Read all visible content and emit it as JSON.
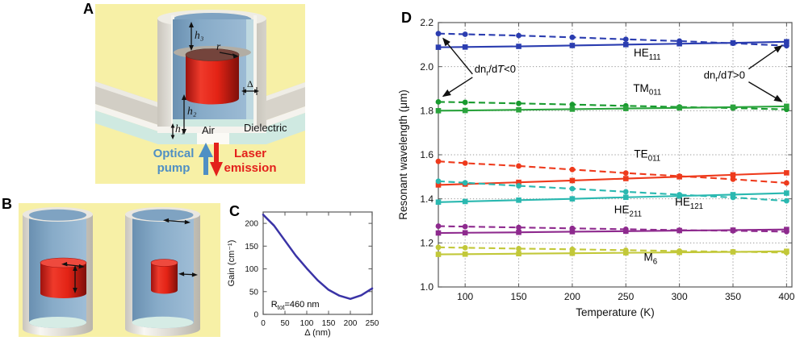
{
  "panel_a": {
    "letter": "A",
    "labels": {
      "h3": "h₃",
      "r": "r",
      "h2": "h₂",
      "delta": "Δ",
      "h1": "h₁",
      "air": "Air",
      "dielectric": "Dielectric",
      "optical_pump_line1": "Optical",
      "optical_pump_line2": "pump",
      "laser_line1": "Laser",
      "laser_line2": "emission"
    },
    "colors": {
      "background": "#f7f0a6",
      "metal": "#dcd9d1",
      "interior_blue": "#87abc8",
      "gain_red": "#e32315",
      "dielectric_cyan": "#cfe9e1",
      "pump_text": "#4f8fc4",
      "laser_text": "#e3211c"
    }
  },
  "panel_b": {
    "letter": "B"
  },
  "panel_c": {
    "letter": "C"
  },
  "panel_d": {
    "letter": "D"
  },
  "chart_data": [
    {
      "panel": "C",
      "type": "line",
      "title": "",
      "xlabel": "Δ (nm)",
      "ylabel": "Gain (cm⁻¹)",
      "xlim": [
        0,
        250
      ],
      "ylim": [
        0,
        225
      ],
      "xticks": [
        0,
        50,
        100,
        150,
        200,
        250
      ],
      "yticks": [
        0,
        50,
        100,
        150,
        200
      ],
      "grid": false,
      "legend": "none",
      "annotation": {
        "pre": "R",
        "sub": "tot",
        "mid": "=460 nm"
      },
      "line_color": "#3a33a6",
      "x": [
        0,
        25,
        50,
        75,
        100,
        125,
        150,
        175,
        200,
        225,
        250
      ],
      "y": [
        219,
        195,
        162,
        129,
        101,
        75,
        54,
        41,
        34,
        42,
        57
      ]
    },
    {
      "panel": "D",
      "type": "line",
      "title": "",
      "xlabel": "Temperature (K)",
      "ylabel": "Resonant wavelength (μm)",
      "xlim": [
        75,
        405
      ],
      "ylim": [
        1.0,
        2.2
      ],
      "xticks": [
        100,
        150,
        200,
        250,
        300,
        350,
        400
      ],
      "yticks": [
        1.0,
        1.2,
        1.4,
        1.6,
        1.8,
        2.0,
        2.2
      ],
      "grid": true,
      "legend": "none",
      "x": [
        75,
        100,
        150,
        200,
        250,
        300,
        350,
        400
      ],
      "series": [
        {
          "mode": "HE111",
          "variant": "dashed",
          "color": "#2b3db0",
          "style": "dashed",
          "marker": "circle",
          "values": [
            2.15,
            2.147,
            2.141,
            2.133,
            2.124,
            2.116,
            2.106,
            2.095
          ]
        },
        {
          "mode": "HE111",
          "variant": "solid",
          "color": "#2b3db0",
          "style": "solid",
          "marker": "square",
          "values": [
            2.088,
            2.089,
            2.092,
            2.096,
            2.1,
            2.104,
            2.108,
            2.113
          ]
        },
        {
          "mode": "TM011",
          "variant": "dashed",
          "color": "#189a2e",
          "style": "dashed",
          "marker": "circle",
          "values": [
            1.84,
            1.838,
            1.833,
            1.828,
            1.822,
            1.817,
            1.812,
            1.806
          ]
        },
        {
          "mode": "TM011",
          "variant": "solid",
          "color": "#2aa33c",
          "style": "solid",
          "marker": "square",
          "values": [
            1.8,
            1.801,
            1.804,
            1.807,
            1.81,
            1.813,
            1.816,
            1.82
          ]
        },
        {
          "mode": "TE011",
          "variant": "dashed",
          "color": "#ee3a1c",
          "style": "dashed",
          "marker": "circle",
          "values": [
            1.57,
            1.562,
            1.549,
            1.533,
            1.517,
            1.503,
            1.489,
            1.472
          ]
        },
        {
          "mode": "TE011",
          "variant": "solid",
          "color": "#ee3a1c",
          "style": "solid",
          "marker": "square",
          "values": [
            1.463,
            1.467,
            1.475,
            1.483,
            1.492,
            1.5,
            1.509,
            1.518
          ]
        },
        {
          "mode": "HE121",
          "variant": "dashed",
          "color": "#2ab8b0",
          "style": "dashed",
          "marker": "circle",
          "values": [
            1.48,
            1.473,
            1.459,
            1.446,
            1.432,
            1.419,
            1.406,
            1.391
          ]
        },
        {
          "mode": "HE121",
          "variant": "solid",
          "color": "#2ab8b0",
          "style": "solid",
          "marker": "square",
          "values": [
            1.385,
            1.388,
            1.394,
            1.4,
            1.407,
            1.413,
            1.419,
            1.426
          ]
        },
        {
          "mode": "HE211",
          "variant": "dashed",
          "color": "#8e2a8e",
          "style": "dashed",
          "marker": "circle",
          "values": [
            1.276,
            1.274,
            1.27,
            1.266,
            1.262,
            1.258,
            1.255,
            1.251
          ]
        },
        {
          "mode": "HE211",
          "variant": "solid",
          "color": "#8e2a8e",
          "style": "solid",
          "marker": "square",
          "values": [
            1.245,
            1.246,
            1.248,
            1.251,
            1.253,
            1.256,
            1.258,
            1.261
          ]
        },
        {
          "mode": "M6",
          "variant": "dashed",
          "color": "#c2c839",
          "style": "dashed",
          "marker": "circle",
          "values": [
            1.18,
            1.178,
            1.174,
            1.171,
            1.167,
            1.163,
            1.16,
            1.156
          ]
        },
        {
          "mode": "M6",
          "variant": "solid",
          "color": "#c2c839",
          "style": "solid",
          "marker": "square",
          "values": [
            1.148,
            1.149,
            1.151,
            1.153,
            1.155,
            1.157,
            1.159,
            1.162
          ]
        }
      ],
      "mode_labels": [
        {
          "pre": "HE",
          "sub": "111",
          "t": 270,
          "w": 2.046
        },
        {
          "pre": "TM",
          "sub": "011",
          "t": 270,
          "w": 1.886
        },
        {
          "pre": "TE",
          "sub": "011",
          "t": 270,
          "w": 1.587
        },
        {
          "pre": "HE",
          "sub": "211",
          "t": 252,
          "w": 1.334
        },
        {
          "pre": "HE",
          "sub": "121",
          "t": 309,
          "w": 1.369
        },
        {
          "pre": "M",
          "sub": "6",
          "t": 273,
          "w": 1.118
        }
      ],
      "annotations": [
        {
          "side": "left",
          "text": {
            "pre": "dn",
            "sub": "r",
            "mid": "/d",
            "it": "T",
            "post": "<0"
          },
          "t": 128,
          "w": 1.988,
          "arrows": [
            {
              "t": 75,
              "w": 2.15
            },
            {
              "t": 75,
              "w": 1.84
            }
          ]
        },
        {
          "side": "right",
          "text": {
            "pre": "dn",
            "sub": "r",
            "mid": "/d",
            "it": "T",
            "post": ">0"
          },
          "t": 342,
          "w": 1.96,
          "arrows": [
            {
              "t": 400,
              "w": 2.113
            },
            {
              "t": 400,
              "w": 1.82
            }
          ]
        }
      ]
    }
  ]
}
